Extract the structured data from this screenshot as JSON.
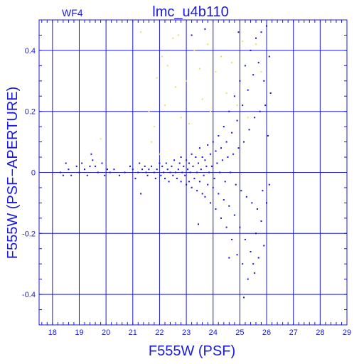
{
  "chart_data": {
    "type": "scatter",
    "title": "lmc_u4b110",
    "corner_label": "WF4",
    "xlabel": "F555W (PSF)",
    "ylabel": "F555W (PSF−APERTURE)",
    "xlim": [
      17.5,
      29
    ],
    "ylim": [
      -0.5,
      0.5
    ],
    "xticks": [
      18,
      19,
      20,
      21,
      22,
      23,
      24,
      25,
      26,
      27,
      28,
      29
    ],
    "yticks": [
      -0.4,
      -0.2,
      0,
      0.2,
      0.4
    ],
    "ytick_labels": [
      "-0.4",
      "-0.2",
      "0",
      "0.2",
      "0.4"
    ],
    "grid": true,
    "colors": {
      "axis": "#1a1ad8",
      "series_main": "#1010e0",
      "series_flagged": "#f0e050"
    },
    "series": [
      {
        "role": "main",
        "points": [
          [
            18.3,
            0.0
          ],
          [
            18.4,
            -0.01
          ],
          [
            18.5,
            0.03
          ],
          [
            18.6,
            0.01
          ],
          [
            18.7,
            -0.01
          ],
          [
            18.9,
            0.02
          ],
          [
            19.0,
            0.0
          ],
          [
            19.1,
            0.03
          ],
          [
            19.2,
            0.01
          ],
          [
            19.3,
            -0.01
          ],
          [
            19.4,
            0.02
          ],
          [
            19.45,
            0.06
          ],
          [
            19.5,
            0.04
          ],
          [
            19.6,
            0.02
          ],
          [
            19.7,
            0.0
          ],
          [
            19.85,
            0.03
          ],
          [
            19.95,
            -0.01
          ],
          [
            20.05,
            0.01
          ],
          [
            20.15,
            0.0
          ],
          [
            20.3,
            0.01
          ],
          [
            20.5,
            -0.01
          ],
          [
            20.7,
            0.0
          ],
          [
            20.9,
            0.02
          ],
          [
            21.0,
            0.01
          ],
          [
            21.1,
            -0.02
          ],
          [
            21.2,
            0.0
          ],
          [
            21.25,
            0.03
          ],
          [
            21.3,
            -0.07
          ],
          [
            21.35,
            0.01
          ],
          [
            21.45,
            0.02
          ],
          [
            21.5,
            0.0
          ],
          [
            21.55,
            -0.01
          ],
          [
            21.6,
            0.01
          ],
          [
            21.7,
            0.02
          ],
          [
            21.8,
            0.0
          ],
          [
            21.85,
            -0.02
          ],
          [
            21.9,
            0.01
          ],
          [
            22.0,
            0.03
          ],
          [
            22.05,
            -0.01
          ],
          [
            22.1,
            0.02
          ],
          [
            22.15,
            0.0
          ],
          [
            22.2,
            -0.02
          ],
          [
            22.25,
            0.03
          ],
          [
            22.3,
            0.01
          ],
          [
            22.35,
            -0.03
          ],
          [
            22.4,
            0.0
          ],
          [
            22.45,
            0.02
          ],
          [
            22.5,
            -0.01
          ],
          [
            22.55,
            0.04
          ],
          [
            22.6,
            0.0
          ],
          [
            22.65,
            -0.02
          ],
          [
            22.7,
            0.01
          ],
          [
            22.75,
            0.03
          ],
          [
            22.8,
            -0.03
          ],
          [
            22.85,
            0.0
          ],
          [
            22.9,
            0.02
          ],
          [
            22.95,
            -0.01
          ],
          [
            23.0,
            0.04
          ],
          [
            23.0,
            -0.04
          ],
          [
            23.05,
            0.01
          ],
          [
            23.1,
            0.03
          ],
          [
            23.1,
            -0.03
          ],
          [
            23.15,
            0.0
          ],
          [
            23.2,
            0.06
          ],
          [
            23.2,
            -0.05
          ],
          [
            23.25,
            0.02
          ],
          [
            23.3,
            -0.02
          ],
          [
            23.35,
            0.05
          ],
          [
            23.4,
            0.0
          ],
          [
            23.4,
            -0.06
          ],
          [
            23.45,
            0.03
          ],
          [
            23.5,
            -0.03
          ],
          [
            23.5,
            0.08
          ],
          [
            23.55,
            0.01
          ],
          [
            23.6,
            -0.07
          ],
          [
            23.6,
            0.05
          ],
          [
            23.65,
            -0.01
          ],
          [
            23.7,
            0.04
          ],
          [
            23.7,
            -0.08
          ],
          [
            23.75,
            0.02
          ],
          [
            23.8,
            -0.04
          ],
          [
            23.8,
            0.09
          ],
          [
            23.85,
            0.0
          ],
          [
            23.9,
            -0.1
          ],
          [
            23.9,
            0.06
          ],
          [
            23.95,
            0.02
          ],
          [
            24.0,
            -0.05
          ],
          [
            24.0,
            0.1
          ],
          [
            24.05,
            -0.02
          ],
          [
            24.1,
            0.07
          ],
          [
            24.1,
            -0.12
          ],
          [
            24.15,
            0.03
          ],
          [
            24.2,
            -0.07
          ],
          [
            24.2,
            0.12
          ],
          [
            24.25,
            0.0
          ],
          [
            24.3,
            -0.15
          ],
          [
            24.3,
            0.08
          ],
          [
            24.35,
            0.04
          ],
          [
            24.4,
            -0.09
          ],
          [
            24.4,
            0.15
          ],
          [
            24.45,
            -0.03
          ],
          [
            24.5,
            0.1
          ],
          [
            24.5,
            -0.18
          ],
          [
            24.55,
            0.05
          ],
          [
            24.6,
            -0.11
          ],
          [
            24.6,
            0.2
          ],
          [
            24.65,
            0.0
          ],
          [
            24.7,
            -0.22
          ],
          [
            24.7,
            0.13
          ],
          [
            24.75,
            0.06
          ],
          [
            24.8,
            -0.14
          ],
          [
            24.8,
            0.25
          ],
          [
            24.85,
            -0.04
          ],
          [
            24.9,
            0.17
          ],
          [
            24.9,
            -0.27
          ],
          [
            24.95,
            0.08
          ],
          [
            25.0,
            -0.18
          ],
          [
            25.0,
            0.3
          ],
          [
            25.05,
            -0.06
          ],
          [
            25.1,
            0.22
          ],
          [
            25.1,
            -0.3
          ],
          [
            25.15,
            0.1
          ],
          [
            25.2,
            -0.22
          ],
          [
            25.2,
            0.35
          ],
          [
            25.25,
            -0.08
          ],
          [
            25.3,
            0.27
          ],
          [
            25.3,
            -0.35
          ],
          [
            25.35,
            0.14
          ],
          [
            25.4,
            -0.26
          ],
          [
            25.4,
            0.4
          ],
          [
            25.45,
            -0.1
          ],
          [
            25.5,
            0.32
          ],
          [
            25.5,
            -0.3
          ],
          [
            25.55,
            0.18
          ],
          [
            25.6,
            -0.2
          ],
          [
            25.6,
            0.44
          ],
          [
            25.65,
            -0.12
          ],
          [
            25.7,
            0.36
          ],
          [
            25.7,
            -0.28
          ],
          [
            25.75,
            0.2
          ],
          [
            25.8,
            -0.16
          ],
          [
            25.8,
            0.46
          ],
          [
            25.85,
            -0.06
          ],
          [
            25.9,
            0.3
          ],
          [
            25.9,
            -0.24
          ],
          [
            25.95,
            0.22
          ],
          [
            26.0,
            -0.1
          ],
          [
            26.0,
            0.48
          ],
          [
            26.05,
            0.12
          ],
          [
            26.1,
            0.38
          ],
          [
            26.1,
            -0.04
          ],
          [
            26.15,
            0.26
          ],
          [
            24.95,
            0.46
          ],
          [
            23.2,
            0.45
          ],
          [
            23.7,
            0.47
          ],
          [
            25.15,
            -0.41
          ],
          [
            25.55,
            -0.33
          ],
          [
            24.6,
            -0.28
          ],
          [
            23.45,
            -0.17
          ],
          [
            22.8,
            0.05
          ]
        ]
      },
      {
        "role": "flagged",
        "points": [
          [
            19.8,
            0.11
          ],
          [
            21.3,
            0.46
          ],
          [
            21.6,
            0.2
          ],
          [
            21.7,
            0.1
          ],
          [
            21.8,
            0.15
          ],
          [
            21.9,
            0.31
          ],
          [
            22.0,
            0.06
          ],
          [
            22.1,
            0.38
          ],
          [
            22.2,
            0.22
          ],
          [
            22.3,
            0.35
          ],
          [
            22.5,
            0.44
          ],
          [
            22.6,
            0.28
          ],
          [
            22.7,
            0.45
          ],
          [
            22.8,
            0.18
          ],
          [
            23.0,
            0.3
          ],
          [
            23.1,
            0.16
          ],
          [
            23.3,
            0.4
          ],
          [
            23.5,
            0.34
          ],
          [
            23.6,
            0.24
          ],
          [
            23.8,
            0.42
          ],
          [
            23.9,
            0.2
          ],
          [
            24.1,
            0.33
          ],
          [
            24.3,
            0.38
          ],
          [
            24.5,
            0.26
          ],
          [
            24.7,
            0.36
          ],
          [
            24.9,
            0.22
          ],
          [
            25.1,
            0.43
          ],
          [
            25.3,
            0.18
          ],
          [
            25.6,
            0.42
          ],
          [
            25.8,
            0.33
          ]
        ]
      }
    ]
  }
}
